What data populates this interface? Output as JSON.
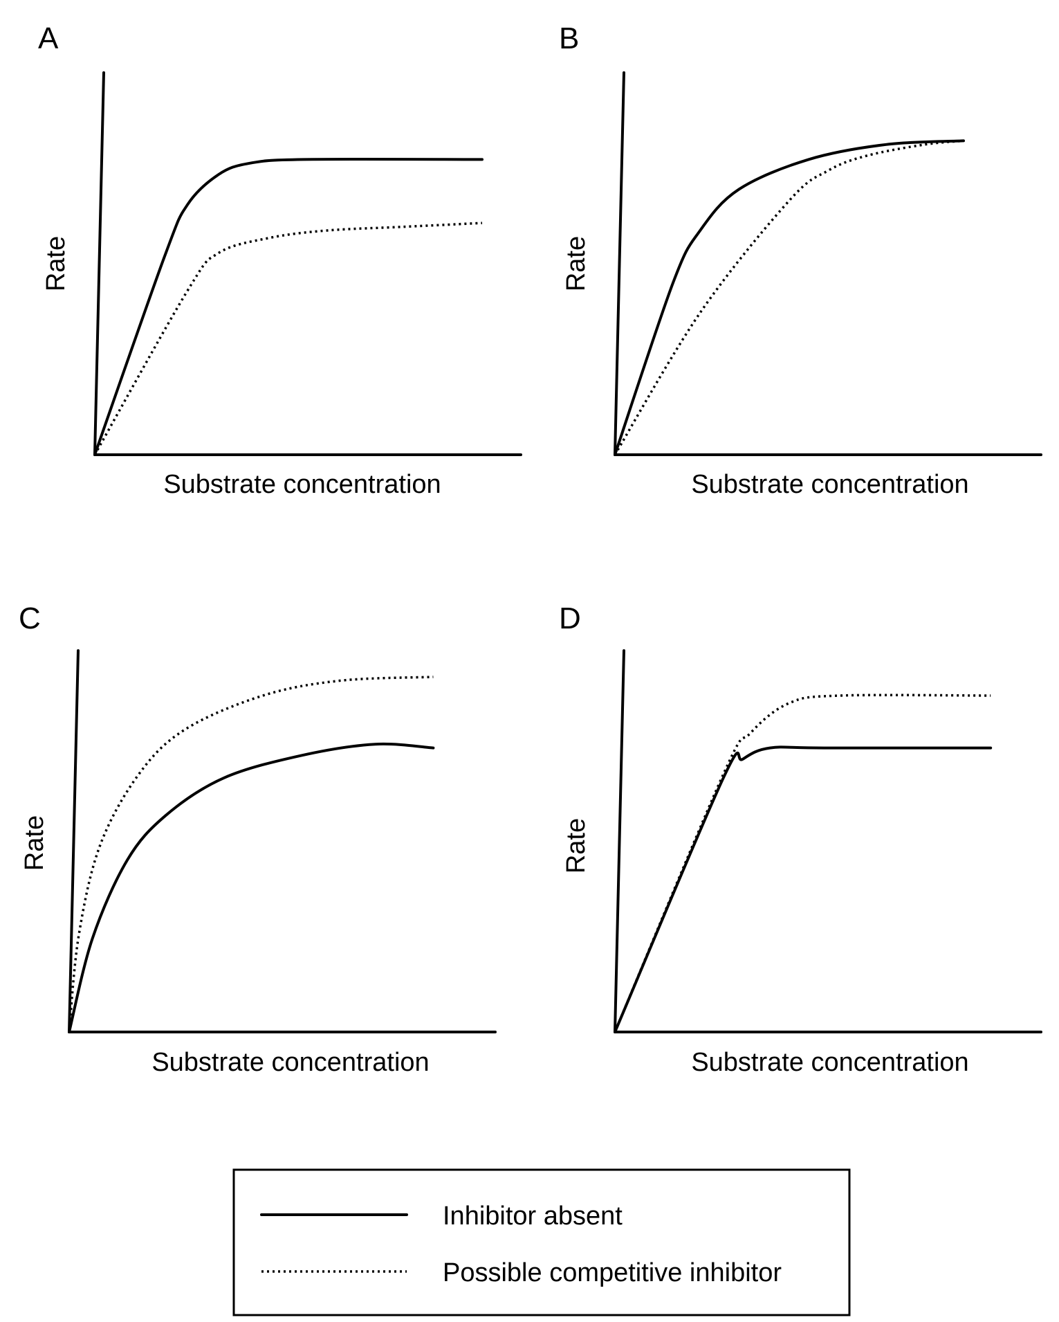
{
  "figure": {
    "legend": {
      "items": [
        {
          "label": "Inhibitor absent",
          "style": "solid"
        },
        {
          "label": "Possible competitive inhibitor",
          "style": "dotted"
        }
      ]
    }
  },
  "chart_data": [
    {
      "type": "line",
      "panel": "A",
      "xlabel": "Substrate concentration",
      "ylabel": "Rate",
      "xlim": [
        0,
        10
      ],
      "ylim": [
        0,
        10
      ],
      "grid": false,
      "series": [
        {
          "style": "solid",
          "x": [
            0,
            1.8,
            2.4,
            3.2,
            4.0,
            5.4,
            10.0
          ],
          "y": [
            0,
            5.3,
            6.7,
            7.5,
            7.8,
            7.9,
            7.9
          ]
        },
        {
          "style": "dotted",
          "x": [
            0,
            2.4,
            3.2,
            4.5,
            6.0,
            8.0,
            10.0
          ],
          "y": [
            0,
            4.4,
            5.4,
            5.8,
            6.0,
            6.1,
            6.2
          ]
        }
      ]
    },
    {
      "type": "line",
      "panel": "B",
      "xlabel": "Substrate concentration",
      "ylabel": "Rate",
      "xlim": [
        0,
        10
      ],
      "ylim": [
        0,
        10
      ],
      "grid": false,
      "series": [
        {
          "style": "solid",
          "x": [
            0,
            1.5,
            2.2,
            3.2,
            5.0,
            7.0,
            9.0
          ],
          "y": [
            0,
            4.6,
            6.0,
            7.1,
            7.9,
            8.3,
            8.4
          ]
        },
        {
          "style": "dotted",
          "x": [
            0,
            2.2,
            4.5,
            5.5,
            6.5,
            8.0,
            9.0
          ],
          "y": [
            0,
            3.8,
            6.8,
            7.6,
            8.0,
            8.3,
            8.4
          ]
        }
      ]
    },
    {
      "type": "line",
      "panel": "C",
      "xlabel": "Substrate concentration",
      "ylabel": "Rate",
      "xlim": [
        0,
        10
      ],
      "ylim": [
        0,
        10
      ],
      "grid": false,
      "series": [
        {
          "style": "solid",
          "x": [
            0,
            0.6,
            1.5,
            2.5,
            4.0,
            6.0,
            7.9,
            9.4
          ],
          "y": [
            0,
            2.5,
            4.6,
            5.8,
            6.8,
            7.4,
            7.7,
            7.6
          ]
        },
        {
          "style": "dotted",
          "x": [
            0,
            0.25,
            0.8,
            1.8,
            3.0,
            5.0,
            7.0,
            9.4
          ],
          "y": [
            0,
            2.6,
            5.0,
            6.9,
            8.1,
            9.0,
            9.4,
            9.5
          ]
        }
      ]
    },
    {
      "type": "line",
      "panel": "D",
      "xlabel": "Substrate concentration",
      "ylabel": "Rate",
      "xlim": [
        0,
        10
      ],
      "ylim": [
        0,
        10
      ],
      "grid": false,
      "series": [
        {
          "style": "solid",
          "x": [
            0,
            2.8,
            3.3,
            4.0,
            5.4,
            9.7
          ],
          "y": [
            0,
            6.8,
            7.3,
            7.6,
            7.6,
            7.6
          ]
        },
        {
          "style": "dotted",
          "x": [
            0,
            2.8,
            3.5,
            4.5,
            5.8,
            9.7
          ],
          "y": [
            0,
            6.9,
            8.0,
            8.8,
            9.0,
            9.0
          ]
        }
      ]
    }
  ]
}
